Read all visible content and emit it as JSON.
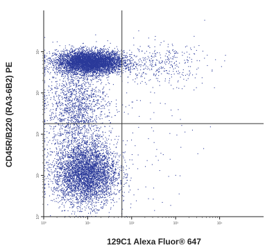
{
  "chart_data": {
    "type": "scatter",
    "title": "",
    "xlabel": "129C1 Alexa Fluor® 647",
    "ylabel": "CD45R/B220 (RA3-6B2) PE",
    "x_scale": "log",
    "y_scale": "log",
    "xlim": [
      1,
      100000
    ],
    "ylim": [
      1,
      100000
    ],
    "x_ticks": [
      "10⁰",
      "10¹",
      "10²",
      "10³",
      "10⁴"
    ],
    "y_ticks": [
      "10⁰",
      "10¹",
      "10²",
      "10³",
      "10⁴"
    ],
    "grid": false,
    "legend": "none",
    "point_color": "#2b3a9a",
    "gates": {
      "x": 60,
      "y": 180
    },
    "populations": [
      {
        "x_log_center": 1.05,
        "x_log_spread": 0.38,
        "y_log_center": 3.75,
        "y_log_spread": 0.14,
        "count": 5200
      },
      {
        "x_log_center": 0.95,
        "x_log_spread": 0.36,
        "y_log_center": 1.05,
        "y_log_spread": 0.38,
        "count": 4200
      },
      {
        "x_log_center": 0.75,
        "x_log_spread": 0.35,
        "y_log_center": 2.6,
        "y_log_spread": 0.55,
        "count": 1600
      },
      {
        "x_log_center": 2.6,
        "x_log_spread": 0.55,
        "y_log_center": 3.7,
        "y_log_spread": 0.25,
        "count": 350
      },
      {
        "x_log_center": 2.3,
        "x_log_spread": 0.6,
        "y_log_center": 2.2,
        "y_log_spread": 0.9,
        "count": 90
      }
    ]
  }
}
